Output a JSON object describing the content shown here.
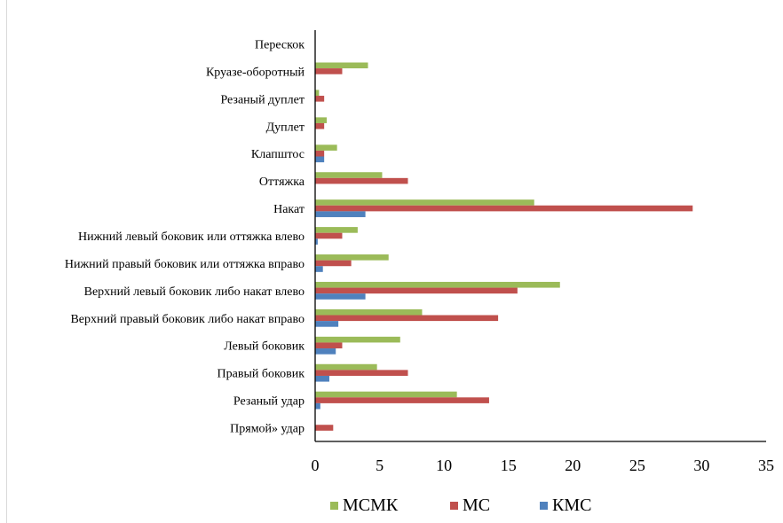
{
  "chart_data": {
    "type": "bar",
    "orientation": "horizontal",
    "categories": [
      "Прямой» удар",
      "Резаный удар",
      "Правый боковик",
      "Левый боковик",
      "Верхний правый боковик либо накат вправо",
      "Верхний левый боковик либо накат влево",
      "Нижний правый боковик или оттяжка вправо",
      "Нижний левый боковик или оттяжка влево",
      "Накат",
      "Оттяжка",
      "Клапштос",
      "Дуплет",
      "Резаный дуплет",
      "Круазе-оборотный",
      "Перескок"
    ],
    "series": [
      {
        "name": "МСМК",
        "color": "#9bbb59",
        "values": [
          0,
          11.0,
          4.8,
          6.6,
          8.3,
          19.0,
          5.7,
          3.3,
          17.0,
          5.2,
          1.7,
          0.9,
          0.3,
          4.1,
          0
        ]
      },
      {
        "name": "МС",
        "color": "#c0504d",
        "values": [
          1.4,
          13.5,
          7.2,
          2.1,
          14.2,
          15.7,
          2.8,
          2.1,
          29.3,
          7.2,
          0.7,
          0.7,
          0.7,
          2.1,
          0
        ]
      },
      {
        "name": "КМС",
        "color": "#4f81bd",
        "values": [
          0,
          0.4,
          1.1,
          1.6,
          1.8,
          3.9,
          0.6,
          0.2,
          3.9,
          0,
          0.7,
          0,
          0,
          0,
          0
        ]
      }
    ],
    "xticks": [
      "0",
      "5",
      "10",
      "15",
      "20",
      "25",
      "30",
      "35"
    ],
    "xlim": [
      0,
      35
    ],
    "grid": false,
    "legend_position": "bottom",
    "title": "",
    "xlabel": "",
    "ylabel": ""
  }
}
